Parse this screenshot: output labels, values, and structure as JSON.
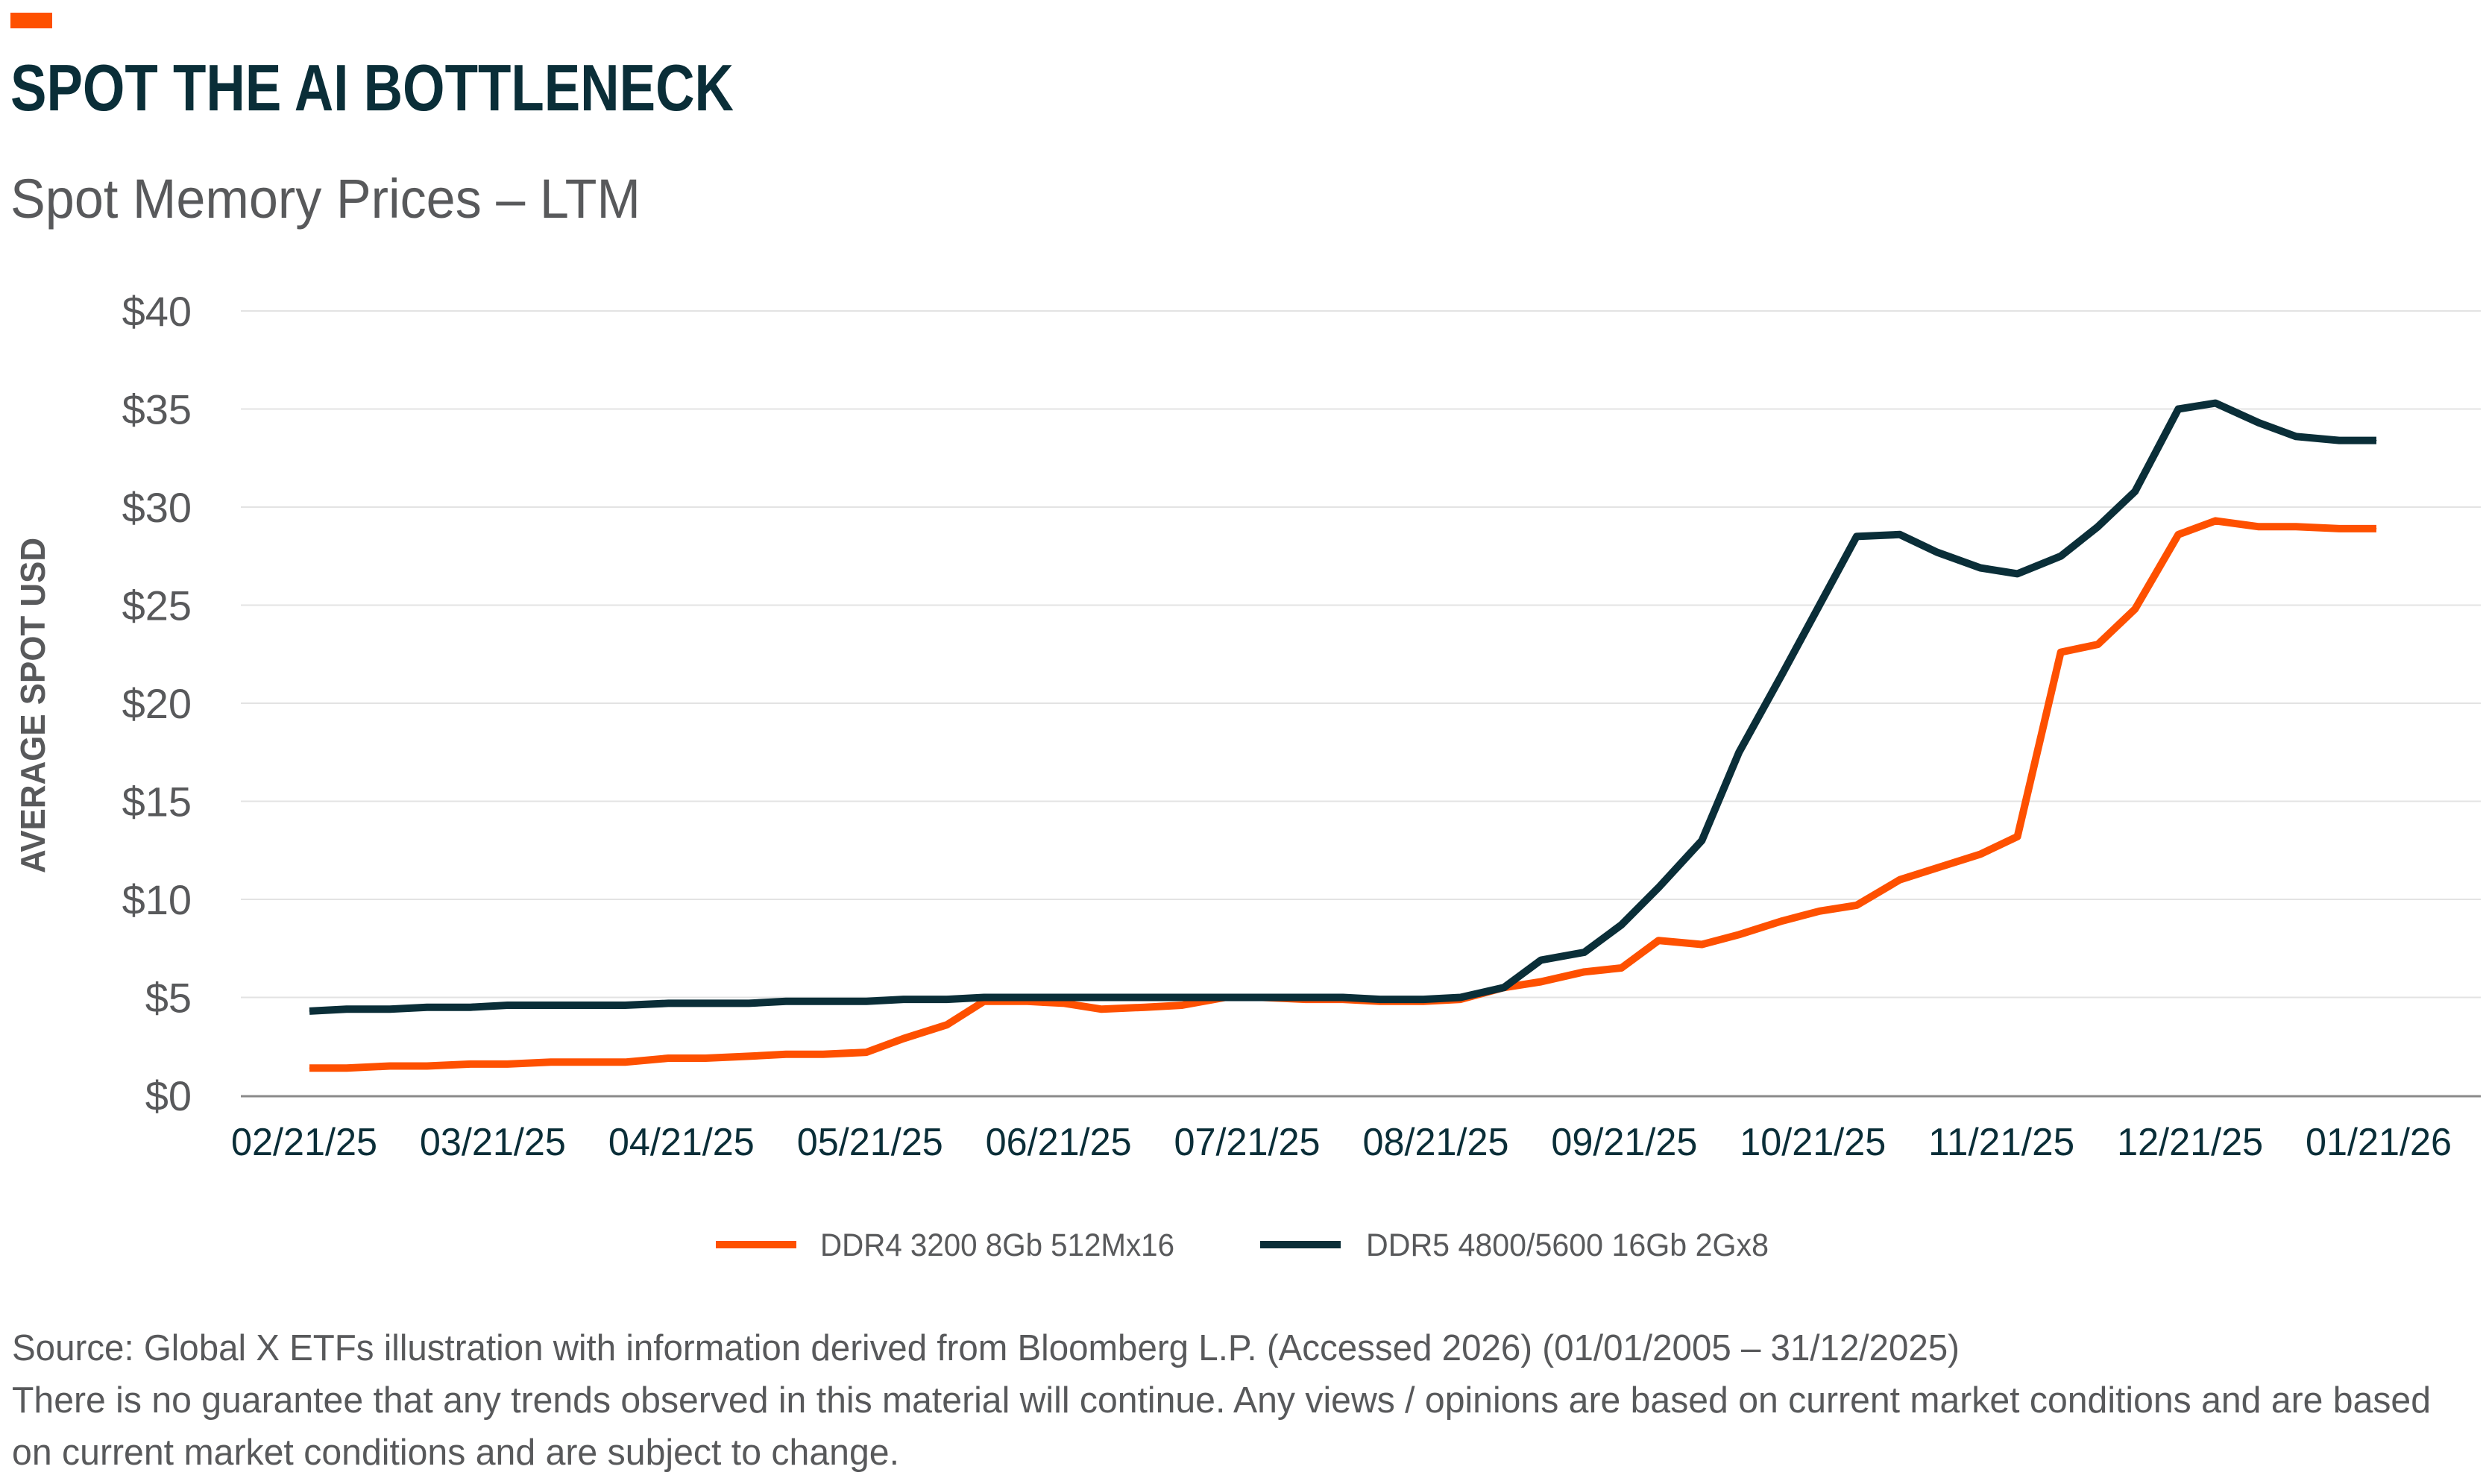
{
  "header": {
    "title": "SPOT THE AI BOTTLENECK",
    "subtitle": "Spot Memory Prices – LTM",
    "accent_color": "#FE5000"
  },
  "chart_data": {
    "type": "line",
    "title": "SPOT THE AI BOTTLENECK",
    "subtitle": "Spot Memory Prices – LTM",
    "xlabel": "",
    "ylabel": "AVERAGE SPOT USD",
    "ylim": [
      0,
      40
    ],
    "yticks": [
      0,
      5,
      10,
      15,
      20,
      25,
      30,
      35,
      40
    ],
    "ytick_labels": [
      "$0",
      "$5",
      "$10",
      "$15",
      "$20",
      "$25",
      "$30",
      "$35",
      "$40"
    ],
    "xtick_labels": [
      "02/21/25",
      "03/21/25",
      "04/21/25",
      "05/21/25",
      "06/21/25",
      "07/21/25",
      "08/21/25",
      "09/21/25",
      "10/21/25",
      "11/21/25",
      "12/21/25",
      "01/21/26"
    ],
    "xlim": [
      "2025-02-21",
      "2026-01-21"
    ],
    "grid": "horizontal",
    "legend_position": "bottom",
    "x": [
      "2025-02-21",
      "2025-02-27",
      "2025-03-06",
      "2025-03-12",
      "2025-03-19",
      "2025-03-25",
      "2025-04-01",
      "2025-04-07",
      "2025-04-13",
      "2025-04-20",
      "2025-04-26",
      "2025-05-03",
      "2025-05-09",
      "2025-05-15",
      "2025-05-22",
      "2025-05-28",
      "2025-06-04",
      "2025-06-10",
      "2025-06-17",
      "2025-06-23",
      "2025-06-29",
      "2025-07-06",
      "2025-07-12",
      "2025-07-19",
      "2025-07-25",
      "2025-08-01",
      "2025-08-07",
      "2025-08-13",
      "2025-08-20",
      "2025-08-26",
      "2025-09-02",
      "2025-09-08",
      "2025-09-15",
      "2025-09-21",
      "2025-09-27",
      "2025-10-04",
      "2025-10-10",
      "2025-10-17",
      "2025-10-23",
      "2025-10-29",
      "2025-11-05",
      "2025-11-11",
      "2025-11-18",
      "2025-11-24",
      "2025-12-01",
      "2025-12-07",
      "2025-12-13",
      "2025-12-20",
      "2025-12-26",
      "2026-01-02",
      "2026-01-08",
      "2026-01-15",
      "2026-01-21"
    ],
    "series": [
      {
        "name": "DDR4 3200 8Gb 512Mx16",
        "color": "#FE5000",
        "values": [
          1.4,
          1.4,
          1.5,
          1.5,
          1.6,
          1.6,
          1.7,
          1.7,
          1.7,
          1.9,
          1.9,
          2.0,
          2.1,
          2.1,
          2.2,
          2.9,
          3.6,
          4.8,
          4.8,
          4.7,
          4.4,
          4.5,
          4.6,
          5.0,
          5.0,
          4.9,
          4.9,
          4.8,
          4.8,
          4.9,
          5.5,
          5.8,
          6.3,
          6.5,
          7.9,
          7.7,
          8.2,
          8.9,
          9.4,
          9.7,
          11.0,
          11.6,
          12.3,
          13.2,
          22.6,
          23.0,
          24.8,
          28.6,
          29.3,
          29.0,
          29.0,
          28.9,
          28.9
        ]
      },
      {
        "name": "DDR5 4800/5600 16Gb 2Gx8",
        "color": "#0A2E38",
        "values": [
          4.3,
          4.4,
          4.4,
          4.5,
          4.5,
          4.6,
          4.6,
          4.6,
          4.6,
          4.7,
          4.7,
          4.7,
          4.8,
          4.8,
          4.8,
          4.9,
          4.9,
          5.0,
          5.0,
          5.0,
          5.0,
          5.0,
          5.0,
          5.0,
          5.0,
          5.0,
          5.0,
          4.9,
          4.9,
          5.0,
          5.5,
          6.9,
          7.3,
          8.7,
          10.6,
          13.0,
          17.5,
          21.5,
          25.0,
          28.5,
          28.6,
          27.7,
          26.9,
          26.6,
          27.5,
          29.0,
          30.8,
          35.0,
          35.3,
          34.3,
          33.6,
          33.4,
          33.4
        ]
      }
    ]
  },
  "footnote": {
    "line1": "Source: Global X ETFs illustration with information derived from Bloomberg L.P. (Accessed 2026) (01/01/2005 – 31/12/2025)",
    "line2": "There is no guarantee that any trends observed in this material will continue. Any views / opinions are based on current market conditions and are based",
    "line3": "on current market conditions and are subject to change."
  }
}
